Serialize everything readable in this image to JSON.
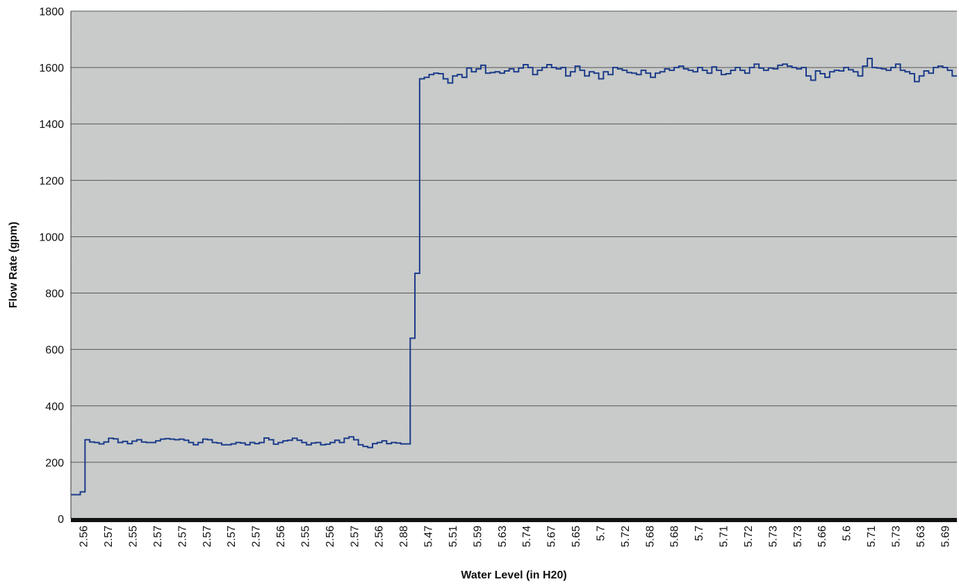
{
  "chart_data": {
    "type": "line",
    "step": true,
    "xlabel": "Water Level (in H20)",
    "ylabel": "Flow Rate (gpm)",
    "ylim": [
      0,
      1800
    ],
    "yticks": [
      0,
      200,
      400,
      600,
      800,
      1000,
      1200,
      1400,
      1600,
      1800
    ],
    "grid": true,
    "x_tick_labels": [
      "2.56",
      "2.57",
      "2.55",
      "2.57",
      "2.57",
      "2.57",
      "2.57",
      "2.57",
      "2.56",
      "2.55",
      "2.56",
      "2.57",
      "2.56",
      "2.88",
      "5.47",
      "5.51",
      "5.59",
      "5.63",
      "5.74",
      "5.67",
      "5.65",
      "5.7",
      "5.72",
      "5.68",
      "5.68",
      "5.7",
      "5.71",
      "5.72",
      "5.73",
      "5.73",
      "5.66",
      "5.6",
      "5.71",
      "5.73",
      "5.63",
      "5.69"
    ],
    "series": [
      {
        "color": "#1a3a8a",
        "values": [
          85,
          85,
          95,
          280,
          272,
          270,
          265,
          272,
          285,
          283,
          270,
          274,
          266,
          275,
          280,
          272,
          270,
          270,
          276,
          282,
          284,
          282,
          280,
          282,
          278,
          270,
          262,
          270,
          282,
          280,
          270,
          268,
          262,
          262,
          265,
          270,
          268,
          262,
          270,
          266,
          270,
          286,
          280,
          264,
          270,
          276,
          278,
          285,
          278,
          270,
          262,
          268,
          270,
          262,
          264,
          270,
          278,
          270,
          285,
          290,
          280,
          262,
          256,
          252,
          266,
          270,
          276,
          266,
          270,
          268,
          265,
          265,
          640,
          870,
          1560,
          1565,
          1575,
          1580,
          1578,
          1560,
          1545,
          1570,
          1575,
          1565,
          1598,
          1585,
          1595,
          1608,
          1580,
          1582,
          1585,
          1580,
          1588,
          1595,
          1585,
          1598,
          1610,
          1600,
          1575,
          1590,
          1600,
          1610,
          1600,
          1595,
          1600,
          1570,
          1585,
          1605,
          1590,
          1570,
          1585,
          1580,
          1560,
          1585,
          1575,
          1600,
          1595,
          1590,
          1582,
          1580,
          1575,
          1590,
          1580,
          1565,
          1580,
          1585,
          1595,
          1590,
          1600,
          1605,
          1595,
          1590,
          1585,
          1600,
          1590,
          1580,
          1602,
          1590,
          1575,
          1578,
          1590,
          1600,
          1590,
          1580,
          1600,
          1612,
          1598,
          1590,
          1598,
          1595,
          1608,
          1612,
          1605,
          1600,
          1595,
          1600,
          1570,
          1555,
          1588,
          1578,
          1565,
          1585,
          1590,
          1588,
          1600,
          1592,
          1585,
          1570,
          1605,
          1632,
          1600,
          1598,
          1595,
          1590,
          1600,
          1612,
          1590,
          1585,
          1578,
          1550,
          1570,
          1588,
          1580,
          1600,
          1605,
          1600,
          1590,
          1570
        ]
      }
    ]
  }
}
